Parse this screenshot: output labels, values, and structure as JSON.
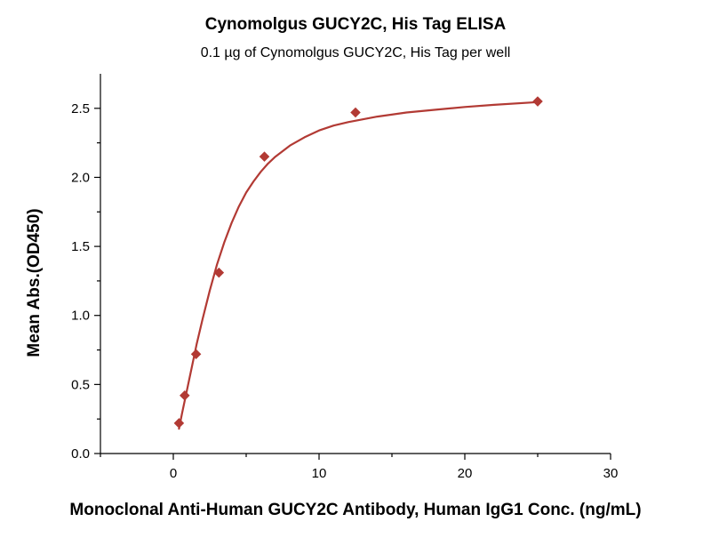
{
  "chart_data": {
    "type": "scatter",
    "title": "Cynomolgus GUCY2C, His Tag ELISA",
    "subtitle": "0.1 µg of Cynomolgus GUCY2C, His Tag per well",
    "xlabel": "Monoclonal Anti-Human GUCY2C Antibody, Human IgG1 Conc. (ng/mL)",
    "ylabel": "Mean Abs.(OD450)",
    "xlim": [
      -5,
      30
    ],
    "ylim": [
      0,
      2.75
    ],
    "xticks": [
      0,
      10,
      20,
      30
    ],
    "yticks": [
      0.0,
      0.5,
      1.0,
      1.5,
      2.0,
      2.5
    ],
    "xtick_labels": [
      "0",
      "10",
      "20",
      "30"
    ],
    "ytick_labels": [
      "0.0",
      "0.5",
      "1.0",
      "1.5",
      "2.0",
      "2.5"
    ],
    "grid": false,
    "legend": "none",
    "series": [
      {
        "marker": "diamond",
        "color": "#b23a34",
        "fit": "four-parameter logistic curve",
        "points": [
          {
            "x": 0.39,
            "y": 0.22
          },
          {
            "x": 0.78,
            "y": 0.42
          },
          {
            "x": 1.56,
            "y": 0.72
          },
          {
            "x": 3.13,
            "y": 1.31
          },
          {
            "x": 6.25,
            "y": 2.15
          },
          {
            "x": 12.5,
            "y": 2.47
          },
          {
            "x": 25.0,
            "y": 2.55
          }
        ]
      }
    ],
    "fit_curve": {
      "x": [
        0.39,
        0.6,
        0.8,
        1.0,
        1.3,
        1.6,
        2.0,
        2.5,
        3.0,
        3.5,
        4.0,
        4.5,
        5.0,
        5.5,
        6.0,
        6.5,
        7.0,
        8.0,
        9.0,
        10.0,
        11.0,
        12.0,
        13.0,
        14.0,
        16.0,
        18.0,
        20.0,
        22.0,
        25.0
      ],
      "y": [
        0.18,
        0.29,
        0.39,
        0.49,
        0.64,
        0.79,
        0.97,
        1.18,
        1.37,
        1.53,
        1.67,
        1.79,
        1.89,
        1.97,
        2.04,
        2.1,
        2.15,
        2.23,
        2.29,
        2.34,
        2.375,
        2.4,
        2.42,
        2.44,
        2.47,
        2.49,
        2.51,
        2.525,
        2.545
      ]
    }
  }
}
